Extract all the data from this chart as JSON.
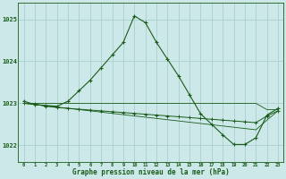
{
  "title": "Graphe pression niveau de la mer (hPa)",
  "background_color": "#cce8e8",
  "grid_color": "#aad0d0",
  "line_color_dark": "#1a5c1a",
  "x_labels": [
    0,
    1,
    2,
    3,
    4,
    5,
    6,
    7,
    8,
    9,
    10,
    11,
    12,
    13,
    14,
    15,
    16,
    17,
    18,
    19,
    20,
    21,
    22,
    23
  ],
  "ylim": [
    1021.6,
    1025.4
  ],
  "yticks": [
    1022,
    1023,
    1024,
    1025
  ],
  "series1": [
    1023.05,
    1022.97,
    1022.95,
    1022.93,
    1023.05,
    1023.3,
    1023.55,
    1023.85,
    1024.15,
    1024.45,
    1025.08,
    1024.92,
    1024.45,
    1024.05,
    1023.65,
    1023.2,
    1022.75,
    1022.5,
    1022.25,
    1022.02,
    1022.02,
    1022.18,
    1022.72,
    1022.88
  ],
  "series2": [
    1023.0,
    1022.98,
    1022.93,
    1022.9,
    1022.88,
    1022.86,
    1022.84,
    1022.82,
    1022.8,
    1022.78,
    1022.76,
    1022.74,
    1022.72,
    1022.7,
    1022.68,
    1022.66,
    1022.64,
    1022.62,
    1022.6,
    1022.58,
    1022.56,
    1022.54,
    1022.7,
    1022.82
  ],
  "series3": [
    1023.0,
    1022.97,
    1022.94,
    1022.91,
    1022.88,
    1022.85,
    1022.82,
    1022.79,
    1022.76,
    1022.73,
    1022.7,
    1022.67,
    1022.64,
    1022.61,
    1022.58,
    1022.55,
    1022.52,
    1022.49,
    1022.46,
    1022.43,
    1022.4,
    1022.37,
    1022.6,
    1022.82
  ],
  "series4": [
    1023.0,
    1023.0,
    1023.0,
    1023.0,
    1023.0,
    1023.0,
    1023.0,
    1023.0,
    1023.0,
    1023.0,
    1023.0,
    1023.0,
    1023.0,
    1023.0,
    1023.0,
    1023.0,
    1023.0,
    1023.0,
    1023.0,
    1023.0,
    1023.0,
    1023.0,
    1022.85,
    1022.85
  ]
}
